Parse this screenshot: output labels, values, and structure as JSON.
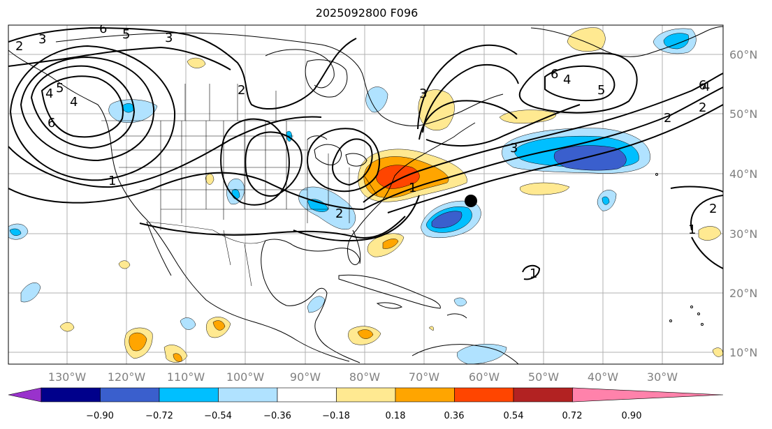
{
  "title": "2025092800 F096",
  "lat_labels": [
    "60°N",
    "50°N",
    "40°N",
    "30°N",
    "20°N",
    "10°N"
  ],
  "lon_labels": [
    "130°W",
    "120°W",
    "110°W",
    "100°W",
    "90°W",
    "80°W",
    "70°W",
    "60°W",
    "50°W",
    "40°W",
    "30°W"
  ],
  "colorbar": {
    "ticks": [
      "−0.90",
      "−0.72",
      "−0.54",
      "−0.36",
      "−0.18",
      "0.18",
      "0.36",
      "0.54",
      "0.72",
      "0.90"
    ],
    "colors": [
      "#9932cc",
      "#00008b",
      "#3a5fcd",
      "#00bfff",
      "#b0e2ff",
      "#ffffff",
      "#ffe991",
      "#ffa500",
      "#ff4500",
      "#b22222",
      "#ff82ab"
    ]
  },
  "contour_labels": [
    "2",
    "3",
    "6",
    "5",
    "3",
    "2",
    "5",
    "4",
    "4",
    "6",
    "4",
    "6",
    "5",
    "3",
    "2",
    "6",
    "2",
    "1",
    "1",
    "2",
    "1",
    "3",
    "2",
    "4",
    "1"
  ],
  "colors": {
    "land_outline": "#000000",
    "grid": "#b0b0b0"
  }
}
